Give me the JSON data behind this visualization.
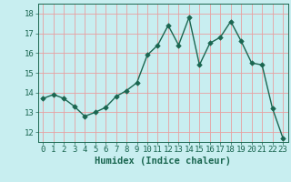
{
  "x": [
    0,
    1,
    2,
    3,
    4,
    5,
    6,
    7,
    8,
    9,
    10,
    11,
    12,
    13,
    14,
    15,
    16,
    17,
    18,
    19,
    20,
    21,
    22,
    23
  ],
  "y": [
    13.7,
    13.9,
    13.7,
    13.3,
    12.8,
    13.0,
    13.25,
    13.8,
    14.1,
    14.5,
    15.9,
    16.4,
    17.4,
    16.4,
    17.8,
    15.4,
    16.5,
    16.8,
    17.6,
    16.6,
    15.5,
    15.4,
    13.2,
    11.7
  ],
  "xlabel": "Humidex (Indice chaleur)",
  "xlim": [
    -0.5,
    23.5
  ],
  "ylim": [
    11.5,
    18.5
  ],
  "yticks": [
    12,
    13,
    14,
    15,
    16,
    17,
    18
  ],
  "xticks": [
    0,
    1,
    2,
    3,
    4,
    5,
    6,
    7,
    8,
    9,
    10,
    11,
    12,
    13,
    14,
    15,
    16,
    17,
    18,
    19,
    20,
    21,
    22,
    23
  ],
  "bg_color": "#c8eef0",
  "plot_bg_color": "#c8eef0",
  "grid_color": "#e8a0a0",
  "line_color": "#1a6650",
  "marker_size": 2.8,
  "line_width": 1.0,
  "font_color": "#1a6650",
  "xlabel_fontsize": 7.5,
  "tick_fontsize": 6.5
}
